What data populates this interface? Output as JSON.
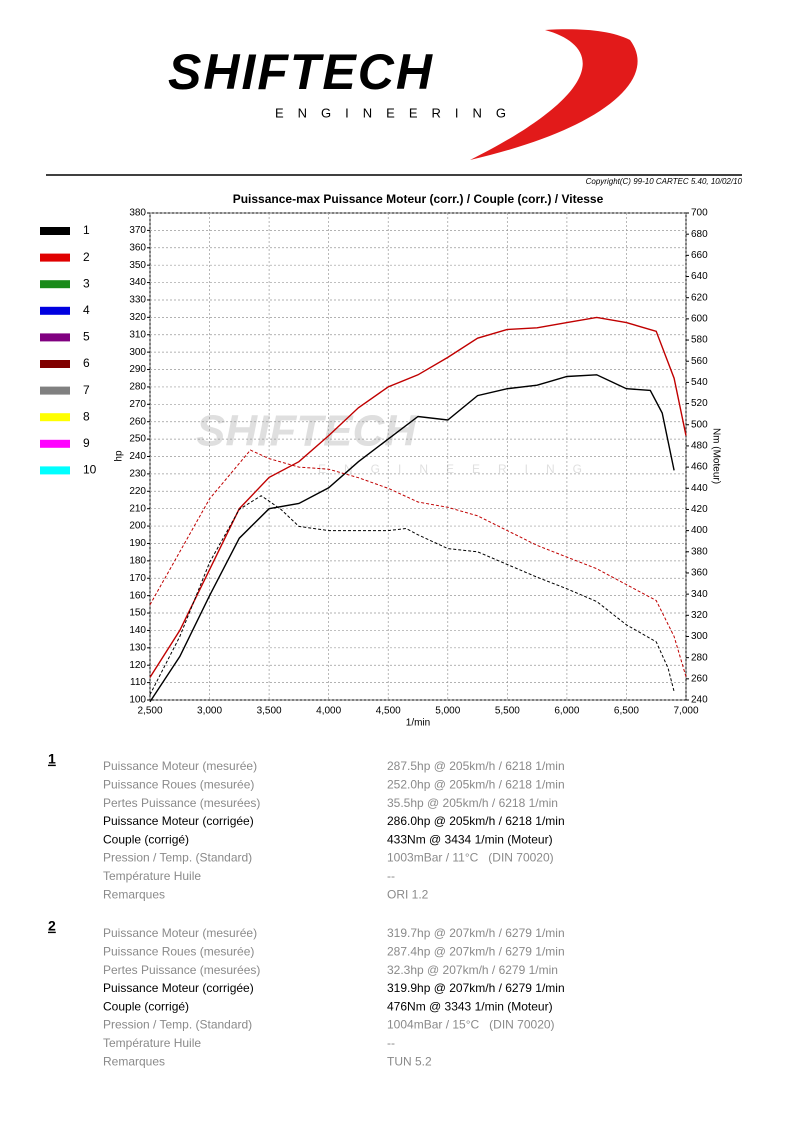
{
  "header": {
    "brand": "SHIFTECH",
    "tagline": "ENGINEERING",
    "copyright": "Copyright(C) 99-10 CARTEC 5.40, 10/02/10"
  },
  "chart_data": {
    "type": "line",
    "title": "Puissance-max Puissance Moteur (corr.) / Couple (corr.) / Vitesse",
    "xlabel": "1/min",
    "ylabel": "hp",
    "y2label": "Nm (Moteur)",
    "xlim": [
      2500,
      7000
    ],
    "xticks": [
      {
        "value": 2500,
        "label": "2,500"
      },
      {
        "value": 3000,
        "label": "3,000"
      },
      {
        "value": 3500,
        "label": "3,500"
      },
      {
        "value": 4000,
        "label": "4,000"
      },
      {
        "value": 4500,
        "label": "4,500"
      },
      {
        "value": 5000,
        "label": "5,000"
      },
      {
        "value": 5500,
        "label": "5,500"
      },
      {
        "value": 6000,
        "label": "6,000"
      },
      {
        "value": 6500,
        "label": "6,500"
      },
      {
        "value": 7000,
        "label": "7,000"
      }
    ],
    "ylim": [
      100,
      380
    ],
    "yticks": [
      100,
      110,
      120,
      130,
      140,
      150,
      160,
      170,
      180,
      190,
      200,
      210,
      220,
      230,
      240,
      250,
      260,
      270,
      280,
      290,
      300,
      310,
      320,
      330,
      340,
      350,
      360,
      370,
      380
    ],
    "y2lim": [
      240,
      700
    ],
    "y2ticks": [
      240,
      260,
      280,
      300,
      320,
      340,
      360,
      380,
      400,
      420,
      440,
      460,
      480,
      500,
      520,
      540,
      560,
      580,
      600,
      620,
      640,
      660,
      680,
      700
    ],
    "grid": true,
    "legend": [
      {
        "name": "1",
        "color": "#000000"
      },
      {
        "name": "2",
        "color": "#e00000"
      },
      {
        "name": "3",
        "color": "#1a8a1a"
      },
      {
        "name": "4",
        "color": "#0000e0"
      },
      {
        "name": "5",
        "color": "#800080"
      },
      {
        "name": "6",
        "color": "#800000"
      },
      {
        "name": "7",
        "color": "#808080"
      },
      {
        "name": "8",
        "color": "#ffff00"
      },
      {
        "name": "9",
        "color": "#ff00ff"
      },
      {
        "name": "10",
        "color": "#00ffff"
      }
    ],
    "series": [
      {
        "color": "#000000",
        "axis": "y",
        "dashed": false,
        "x": [
          2500,
          2750,
          3000,
          3250,
          3500,
          3750,
          4000,
          4250,
          4500,
          4750,
          5000,
          5250,
          5500,
          5750,
          6000,
          6250,
          6500,
          6700,
          6800,
          6900
        ],
        "values": [
          99,
          125,
          160,
          193,
          210,
          213,
          222,
          237,
          250,
          263,
          261,
          275,
          279,
          281,
          286,
          287,
          279,
          278,
          265,
          232
        ]
      },
      {
        "color": "#c00000",
        "axis": "y",
        "dashed": false,
        "x": [
          2500,
          2750,
          3000,
          3250,
          3500,
          3750,
          4000,
          4250,
          4500,
          4750,
          5000,
          5250,
          5500,
          5750,
          6000,
          6250,
          6500,
          6750,
          6900,
          7000
        ],
        "values": [
          113,
          140,
          175,
          210,
          228,
          237,
          252,
          268,
          280,
          287,
          297,
          308,
          313,
          314,
          317,
          320,
          317,
          312,
          285,
          252
        ]
      },
      {
        "color": "#000000",
        "axis": "y2",
        "dashed": true,
        "x": [
          2500,
          2750,
          3000,
          3250,
          3434,
          3600,
          3750,
          4000,
          4250,
          4500,
          4650,
          4750,
          5000,
          5250,
          5500,
          5750,
          6000,
          6250,
          6500,
          6750,
          6850,
          6900
        ],
        "values": [
          245,
          300,
          370,
          420,
          433,
          420,
          404,
          400,
          400,
          400,
          402,
          396,
          383,
          380,
          368,
          356,
          345,
          333,
          311,
          295,
          270,
          248
        ]
      },
      {
        "color": "#c00000",
        "axis": "y2",
        "dashed": true,
        "x": [
          2500,
          2750,
          3000,
          3343,
          3500,
          3750,
          4000,
          4250,
          4500,
          4750,
          5000,
          5250,
          5500,
          5750,
          6000,
          6250,
          6500,
          6750,
          6900,
          7000
        ],
        "values": [
          330,
          380,
          430,
          476,
          468,
          460,
          458,
          450,
          440,
          427,
          422,
          414,
          400,
          386,
          375,
          364,
          349,
          334,
          300,
          262
        ]
      }
    ]
  },
  "results": [
    {
      "number": "1",
      "rows": [
        [
          "Puissance Moteur (mesurée)",
          "287.5hp @ 205km/h / 6218 1/min"
        ],
        [
          "Puissance Roues (mesurée)",
          "252.0hp @ 205km/h / 6218 1/min"
        ],
        [
          "Pertes Puissance (mesurées)",
          "35.5hp @ 205km/h / 6218 1/min"
        ],
        [
          "Puissance Moteur (corrigée)",
          "286.0hp @ 205km/h / 6218 1/min"
        ],
        [
          "Couple (corrigé)",
          "433Nm @ 3434 1/min (Moteur)"
        ],
        [
          "Pression / Temp. (Standard)",
          "1003mBar / 11°C   (DIN 70020)"
        ],
        [
          "Température Huile",
          "--"
        ],
        [
          "Remarques",
          "ORI 1.2"
        ]
      ]
    },
    {
      "number": "2",
      "rows": [
        [
          "Puissance Moteur (mesurée)",
          "319.7hp @ 207km/h / 6279 1/min"
        ],
        [
          "Puissance Roues (mesurée)",
          "287.4hp @ 207km/h / 6279 1/min"
        ],
        [
          "Pertes Puissance (mesurées)",
          "32.3hp @ 207km/h / 6279 1/min"
        ],
        [
          "Puissance Moteur (corrigée)",
          "319.9hp @ 207km/h / 6279 1/min"
        ],
        [
          "Couple (corrigé)",
          "476Nm @ 3343 1/min (Moteur)"
        ],
        [
          "Pression / Temp. (Standard)",
          "1004mBar / 15°C   (DIN 70020)"
        ],
        [
          "Température Huile",
          "--"
        ],
        [
          "Remarques",
          "TUN 5.2"
        ]
      ]
    }
  ]
}
